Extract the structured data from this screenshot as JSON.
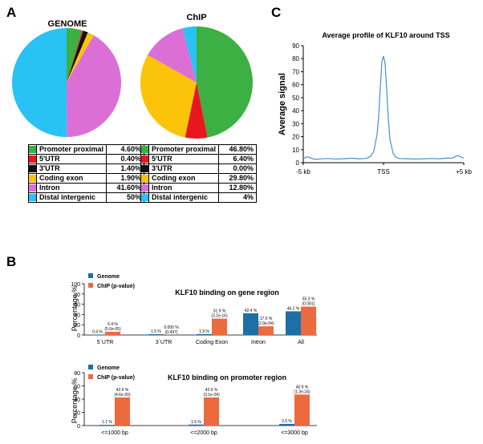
{
  "panel_labels": {
    "a": "A",
    "b": "B",
    "c": "C"
  },
  "colors": {
    "promoter": "#3cb043",
    "utr5": "#e8171f",
    "utr3": "#111111",
    "coding": "#fbc40a",
    "intron": "#dc6fd6",
    "distal": "#29c2f5",
    "genome_bar": "#1d6fa5",
    "chip_bar": "#ec6b3e",
    "profile_line": "#4a8fcf"
  },
  "chart_data": [
    {
      "id": "pie-genome",
      "type": "pie",
      "title": "GENOME",
      "categories": [
        "Promoter proximal",
        "5'UTR",
        "3'UTR",
        "Coding exon",
        "Intron",
        "Distal intergenic"
      ],
      "values": [
        4.6,
        0.4,
        1.4,
        1.9,
        41.6,
        50
      ],
      "value_labels": [
        "4.60%",
        "0.40%",
        "1.40%",
        "1.90%",
        "41.60%",
        "50%"
      ]
    },
    {
      "id": "pie-chip",
      "type": "pie",
      "title": "ChIP",
      "categories": [
        "Promoter proximal",
        "5'UTR",
        "3'UTR",
        "Coding exon",
        "Intron",
        "Distal intergenic"
      ],
      "values": [
        46.8,
        6.4,
        0.0,
        29.8,
        12.8,
        4
      ],
      "value_labels": [
        "46.80%",
        "6.40%",
        "0.00%",
        "29.80%",
        "12.80%",
        "4%"
      ]
    },
    {
      "id": "profile",
      "type": "line",
      "title": "Average profile of KLF10 around TSS",
      "xlabel": "",
      "ylabel": "Average signal",
      "x_tick_labels": [
        "-5 kb",
        "TSS",
        "+5 kb"
      ],
      "xlim": [
        -5,
        5
      ],
      "ylim": [
        0,
        90
      ],
      "y_ticks": [
        0,
        10,
        20,
        30,
        40,
        50,
        60,
        70,
        80,
        90
      ],
      "x": [
        -5,
        -4.8,
        -4.6,
        -4.4,
        -4.2,
        -4,
        -3.5,
        -3,
        -2.5,
        -2,
        -1.5,
        -1.2,
        -1,
        -0.8,
        -0.6,
        -0.4,
        -0.3,
        -0.2,
        -0.1,
        0,
        0.1,
        0.2,
        0.3,
        0.4,
        0.6,
        0.8,
        1,
        1.5,
        2,
        2.5,
        3,
        3.5,
        4,
        4.3,
        4.6,
        4.8,
        5
      ],
      "y": [
        3,
        4.5,
        4,
        3,
        2.6,
        2.8,
        3.2,
        2.8,
        3,
        3.4,
        3,
        3.2,
        3.6,
        5,
        9,
        22,
        36,
        58,
        78,
        82,
        76,
        56,
        34,
        18,
        7,
        4,
        3.2,
        3,
        2.8,
        3,
        3.2,
        3,
        3.6,
        3.5,
        5.5,
        4.5,
        3.6
      ]
    },
    {
      "id": "bar-gene",
      "type": "bar",
      "title": "KLF10 binding on gene region",
      "ylabel": "Percentage %",
      "ylim": [
        0,
        100
      ],
      "y_ticks": [
        0,
        20,
        40,
        60,
        80,
        100
      ],
      "categories": [
        "5´UTR",
        "3´UTR",
        "Coding Exon",
        "Intron",
        "All"
      ],
      "series": [
        {
          "name": "Genome",
          "values": [
            0.4,
            1.5,
            1.9,
            42.4,
            46.2
          ],
          "labels": [
            "0.4 %",
            "1.5 %",
            "1.9 %",
            "42.4 %",
            "46.2 %"
          ]
        },
        {
          "name": "ChIP (p-value)",
          "values": [
            6.4,
            0.0,
            31.9,
            17.0,
            55.3
          ],
          "labels": [
            "6.4 %",
            "0.000 %",
            "31.9 %",
            "17.0 %",
            "55.3 %"
          ],
          "sublabels": [
            "(5.6e-05)",
            "(0.497)",
            "(3.2e-16)",
            "(2.9e-04)",
            "(0.081)"
          ]
        }
      ]
    },
    {
      "id": "bar-promoter",
      "type": "bar",
      "title": "KLF10 binding on promoter region",
      "ylabel": "Percentage %",
      "ylim": [
        0,
        80
      ],
      "y_ticks": [
        0,
        20,
        40,
        60,
        80
      ],
      "categories": [
        "<=1000 bp",
        "<=2000 bp",
        "<=3000 bp"
      ],
      "series": [
        {
          "name": "Genome",
          "values": [
            1.1,
            1.5,
            2.5
          ],
          "labels": [
            "1.1 %",
            "1.5 %",
            "2.5 %"
          ]
        },
        {
          "name": "ChIP (p-value)",
          "values": [
            42.6,
            42.6,
            46.9
          ],
          "labels": [
            "42.6 %",
            "42.6 %",
            "46.9 %"
          ],
          "sublabels": [
            "(4.6e-20)",
            "(3.1e-24)",
            "(1.3e-24)"
          ]
        }
      ]
    }
  ]
}
